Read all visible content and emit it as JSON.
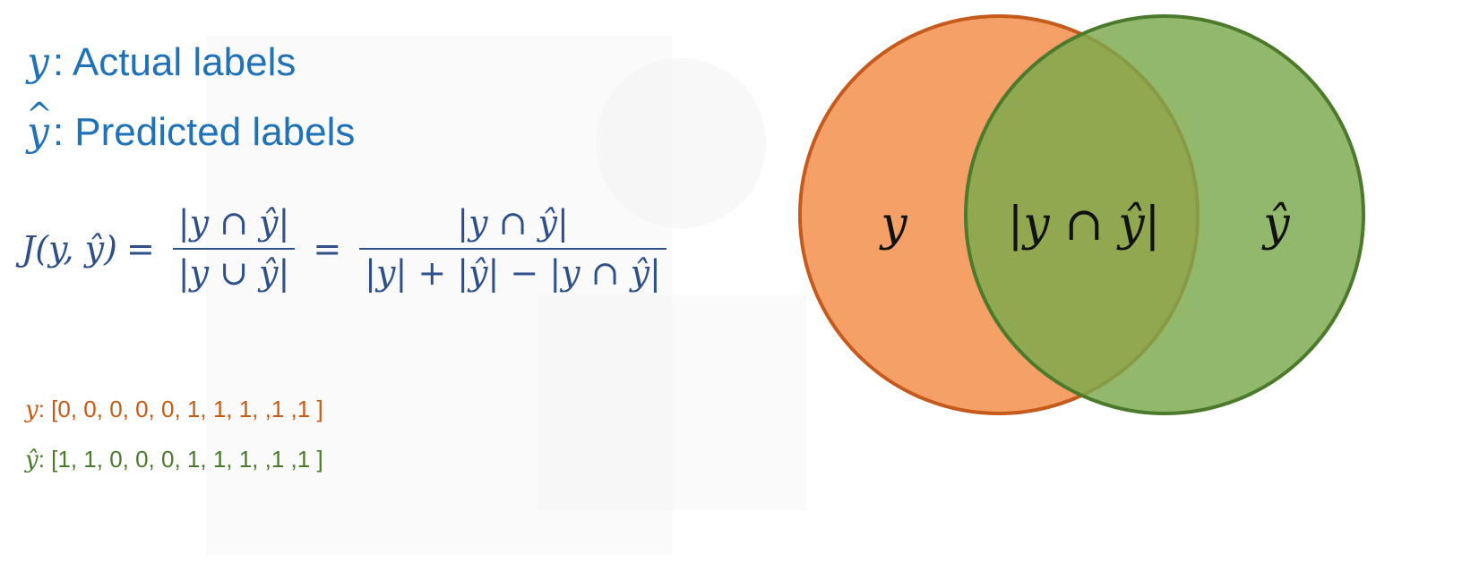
{
  "definitions": {
    "actual": {
      "symbol": "y",
      "text": ": Actual labels"
    },
    "predicted": {
      "symbol": "y",
      "text": ": Predicted labels"
    }
  },
  "formula": {
    "lhs": "J(y, ŷ)",
    "equals": "=",
    "frac1_num": "|y ∩ ŷ|",
    "frac1_den": "|y ∪ ŷ|",
    "frac2_num": "|y ∩ ŷ|",
    "frac2_den": "|y| + |ŷ| − |y ∩ ŷ|"
  },
  "vectors": {
    "actual": {
      "symbol": "y",
      "text": ": [0, 0, 0, 0, 0, 1, 1, 1, ,1 ,1 ]"
    },
    "predicted": {
      "symbol": "ŷ",
      "text": ": [1, 1, 0, 0, 0, 1, 1, 1, ,1 ,1 ]"
    }
  },
  "venn": {
    "left_label": "y",
    "intersection_label": "|y ∩ ŷ|",
    "right_label": "ŷ"
  },
  "colors": {
    "heading_blue": "#1f72b8",
    "formula_navy": "#2d4f8a",
    "actual_orange": "#c85a12",
    "predicted_green": "#4a7a2a",
    "circle_orange_fill": "#f5a066",
    "circle_orange_stroke": "#c65a1c",
    "circle_green_fill": "#8db560",
    "circle_green_stroke": "#4b7a2c"
  }
}
